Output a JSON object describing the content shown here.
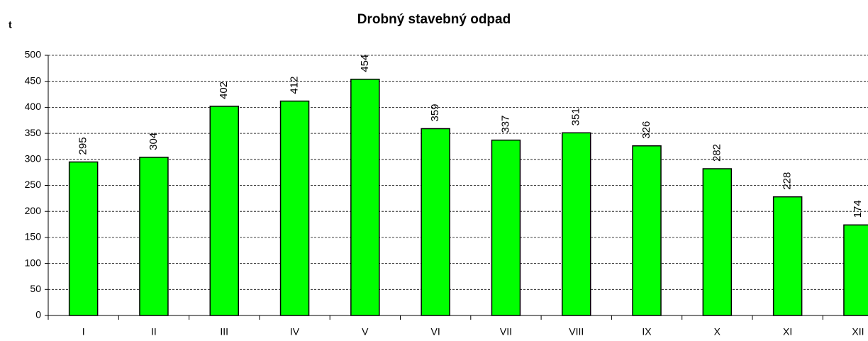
{
  "chart_data": {
    "type": "bar",
    "title": "Drobný stavebný odpad",
    "y_label": "t",
    "categories": [
      "I",
      "II",
      "III",
      "IV",
      "V",
      "VI",
      "VII",
      "VIII",
      "IX",
      "X",
      "XI",
      "XII"
    ],
    "values": [
      295,
      304,
      402,
      412,
      454,
      359,
      337,
      351,
      326,
      282,
      228,
      174
    ],
    "color": "#00ff00",
    "ylim": [
      0,
      500
    ],
    "yticks": [
      0,
      50,
      100,
      150,
      200,
      250,
      300,
      350,
      400,
      450,
      500
    ],
    "grid": true
  }
}
